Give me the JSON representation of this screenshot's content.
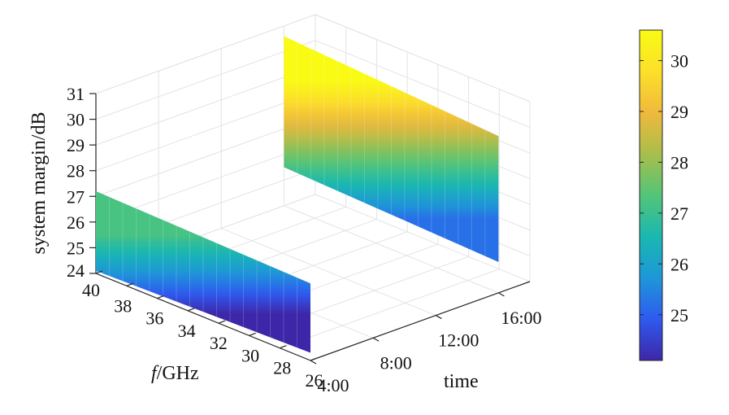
{
  "chart_data": {
    "type": "surface3d",
    "zlabel": "system margin/dB",
    "flabel_italic": "f",
    "flabel_rest": "/GHz",
    "timelabel": "time",
    "z_ticks": [
      "24",
      "25",
      "26",
      "27",
      "28",
      "29",
      "30",
      "31"
    ],
    "f_ticks": [
      "40",
      "38",
      "36",
      "34",
      "32",
      "30",
      "28",
      "26"
    ],
    "time_ticks": [
      "4:00",
      "8:00",
      "12:00",
      "16:00"
    ],
    "zlim": [
      24,
      31
    ],
    "flim": [
      26,
      40
    ],
    "timelim": [
      4,
      18
    ],
    "colorbar": {
      "ticks": [
        "25",
        "26",
        "27",
        "28",
        "29",
        "30"
      ],
      "range": [
        24.1,
        30.6
      ],
      "colors": [
        "#3e26a8",
        "#2e5aef",
        "#1d97d8",
        "#1ab8b0",
        "#52c578",
        "#a8be4c",
        "#f0b93c",
        "#fce02a",
        "#f9fb14"
      ]
    },
    "series": [
      {
        "name": "",
        "time": 4,
        "f_range": [
          26,
          40
        ],
        "z_at_f26": 24.3,
        "z_at_f40": 24.1,
        "top_at_f26": 27.0,
        "top_at_f40": 27.2
      },
      {
        "name": "",
        "time": 16,
        "f_range": [
          26,
          40
        ],
        "z_at_f26": 25.2,
        "z_at_f40": 25.5,
        "top_at_f26": 30.1,
        "top_at_f40": 30.6
      }
    ]
  }
}
